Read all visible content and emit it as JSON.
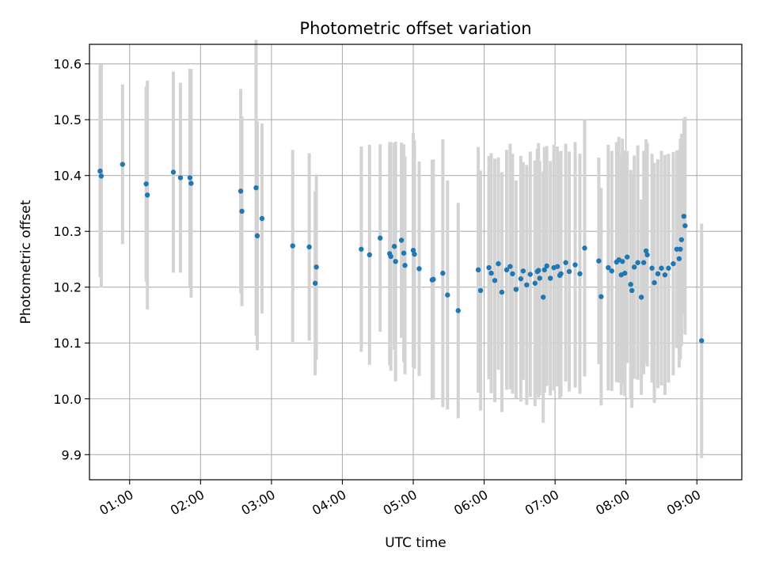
{
  "chart_data": {
    "type": "scatter",
    "title": "Photometric offset variation",
    "xlabel": "UTC time",
    "ylabel": "Photometric offset",
    "xlim": [
      "00:26",
      "09:38"
    ],
    "ylim": [
      9.855,
      10.635
    ],
    "x_ticks": [
      "01:00",
      "02:00",
      "03:00",
      "04:00",
      "05:00",
      "06:00",
      "07:00",
      "08:00",
      "09:00"
    ],
    "y_ticks": [
      "9.9",
      "10.0",
      "10.1",
      "10.2",
      "10.3",
      "10.4",
      "10.5",
      "10.6"
    ],
    "grid": true,
    "colors": {
      "point": "#1f77b4",
      "errorbar": "#d3d3d3",
      "grid": "#b0b0b0"
    },
    "series": [
      {
        "x": [
          "00:35",
          "00:36",
          "00:54",
          "01:14",
          "01:15",
          "01:37",
          "01:43",
          "01:51",
          "01:52",
          "02:34",
          "02:35",
          "02:47",
          "02:48",
          "02:52",
          "03:18",
          "03:32",
          "03:37",
          "03:38",
          "04:16",
          "04:23",
          "04:32",
          "04:40",
          "04:41",
          "04:44",
          "04:45",
          "04:50",
          "04:52",
          "04:53",
          "05:00",
          "05:01",
          "05:05",
          "05:16",
          "05:17",
          "05:25",
          "05:29",
          "05:38",
          "05:55",
          "05:57",
          "06:04",
          "06:06",
          "06:09",
          "06:12",
          "06:15",
          "06:19",
          "06:22",
          "06:24",
          "06:27",
          "06:31",
          "06:33",
          "06:36",
          "06:39",
          "06:43",
          "06:45",
          "06:46",
          "06:47",
          "06:50",
          "06:51",
          "06:53",
          "06:56",
          "06:59",
          "07:02",
          "07:04",
          "07:05",
          "07:09",
          "07:12",
          "07:17",
          "07:21",
          "07:25",
          "07:37",
          "07:39",
          "07:45",
          "07:48",
          "07:52",
          "07:54",
          "07:56",
          "07:57",
          "07:59",
          "08:01",
          "08:04",
          "08:05",
          "08:07",
          "08:10",
          "08:13",
          "08:15",
          "08:17",
          "08:18",
          "08:22",
          "08:24",
          "08:27",
          "08:30",
          "08:33",
          "08:36",
          "08:40",
          "08:43",
          "08:45",
          "08:46",
          "08:47",
          "08:49",
          "08:50",
          "09:04"
        ],
        "y": [
          10.408,
          10.399,
          10.42,
          10.385,
          10.365,
          10.406,
          10.396,
          10.396,
          10.386,
          10.372,
          10.336,
          10.378,
          10.292,
          10.323,
          10.274,
          10.272,
          10.207,
          10.236,
          10.268,
          10.258,
          10.288,
          10.26,
          10.255,
          10.273,
          10.246,
          10.284,
          10.261,
          10.239,
          10.266,
          10.259,
          10.233,
          10.213,
          10.214,
          10.225,
          10.186,
          10.158,
          10.231,
          10.194,
          10.235,
          10.225,
          10.212,
          10.242,
          10.191,
          10.231,
          10.237,
          10.224,
          10.196,
          10.215,
          10.229,
          10.204,
          10.223,
          10.207,
          10.228,
          10.23,
          10.216,
          10.182,
          10.231,
          10.238,
          10.216,
          10.235,
          10.237,
          10.221,
          10.224,
          10.244,
          10.228,
          10.24,
          10.224,
          10.27,
          10.247,
          10.183,
          10.235,
          10.229,
          10.245,
          10.249,
          10.222,
          10.246,
          10.225,
          10.254,
          10.205,
          10.194,
          10.236,
          10.244,
          10.182,
          10.244,
          10.265,
          10.258,
          10.234,
          10.208,
          10.224,
          10.234,
          10.222,
          10.234,
          10.242,
          10.268,
          10.251,
          10.268,
          10.285,
          10.327,
          10.31,
          10.104
        ],
        "yerr": [
          0.19,
          0.2,
          0.143,
          0.175,
          0.205,
          0.18,
          0.17,
          0.195,
          0.205,
          0.183,
          0.17,
          0.265,
          0.205,
          0.17,
          0.172,
          0.168,
          0.165,
          0.166,
          0.184,
          0.197,
          0.168,
          0.2,
          0.205,
          0.185,
          0.215,
          0.175,
          0.195,
          0.195,
          0.21,
          0.205,
          0.192,
          0.215,
          0.215,
          0.24,
          0.205,
          0.193,
          0.22,
          0.215,
          0.2,
          0.215,
          0.218,
          0.19,
          0.215,
          0.215,
          0.22,
          0.215,
          0.195,
          0.22,
          0.195,
          0.215,
          0.22,
          0.22,
          0.22,
          0.228,
          0.21,
          0.225,
          0.22,
          0.215,
          0.21,
          0.22,
          0.215,
          0.22,
          0.22,
          0.213,
          0.215,
          0.22,
          0.215,
          0.23,
          0.185,
          0.195,
          0.22,
          0.215,
          0.215,
          0.22,
          0.215,
          0.22,
          0.22,
          0.19,
          0.205,
          0.21,
          0.2,
          0.21,
          0.175,
          0.2,
          0.2,
          0.2,
          0.205,
          0.215,
          0.205,
          0.21,
          0.215,
          0.205,
          0.2,
          0.177,
          0.195,
          0.198,
          0.19,
          0.175,
          0.195,
          0.21
        ]
      }
    ]
  }
}
